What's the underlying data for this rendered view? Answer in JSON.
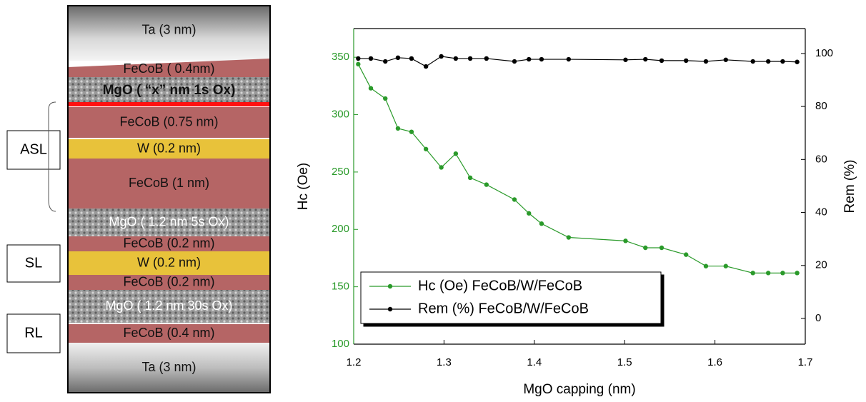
{
  "diagram": {
    "layers": [
      {
        "label": "Ta (3 nm)",
        "kind": "ta"
      },
      {
        "label": "FeCoB ( 0.4nm)",
        "kind": "fecob"
      },
      {
        "label": "MgO ( “x” nm 1s Ox)",
        "kind": "mgo"
      },
      {
        "label": "FeCoB (0.75 nm)",
        "kind": "fecob"
      },
      {
        "label": "W (0.2 nm)",
        "kind": "w"
      },
      {
        "label": "FeCoB (1 nm)",
        "kind": "fecob"
      },
      {
        "label": "MgO ( 1.2 nm 5s Ox)",
        "kind": "mgo"
      },
      {
        "label": "FeCoB (0.2 nm)",
        "kind": "fecob"
      },
      {
        "label": "W (0.2 nm)",
        "kind": "w"
      },
      {
        "label": "FeCoB (0.2 nm)",
        "kind": "fecob"
      },
      {
        "label": "MgO ( 1.2 nm 30s Ox)",
        "kind": "mgo"
      },
      {
        "label": "FeCoB (0.4 nm)",
        "kind": "fecob"
      },
      {
        "label": "Ta (3 nm)",
        "kind": "ta"
      }
    ],
    "groups": [
      "ASL",
      "SL",
      "RL"
    ]
  },
  "chart_data": {
    "type": "line",
    "x_label": "MgO capping (nm)",
    "y_label": "Hc (Oe)",
    "y2_label": "Rem (%)",
    "x": [
      1.205,
      1.219,
      1.235,
      1.249,
      1.264,
      1.28,
      1.297,
      1.313,
      1.329,
      1.347,
      1.378,
      1.394,
      1.408,
      1.438,
      1.501,
      1.523,
      1.541,
      1.568,
      1.59,
      1.612,
      1.642,
      1.659,
      1.675,
      1.691
    ],
    "series": [
      {
        "name": "Hc (Oe) FeCoB/W/FeCoB",
        "color": "#2a9a2a",
        "axis": "y",
        "values": [
          344,
          323,
          314,
          288,
          285,
          270,
          254,
          266,
          245,
          239,
          226,
          214,
          205,
          193,
          190,
          184,
          184,
          178,
          168,
          168,
          162,
          162,
          162,
          162
        ]
      },
      {
        "name": "Rem (%) FeCoB/W/FeCoB",
        "color": "#000000",
        "axis": "y2",
        "values": [
          98.1,
          98.1,
          97.0,
          98.4,
          98.1,
          95.1,
          98.9,
          98.1,
          98.1,
          98.1,
          97.0,
          97.8,
          97.8,
          97.8,
          97.6,
          97.8,
          97.3,
          97.3,
          97.0,
          97.6,
          97.0,
          97.0,
          97.0,
          96.8
        ]
      }
    ],
    "xlim": [
      1.2,
      1.7
    ],
    "xticks": [
      1.2,
      1.3,
      1.4,
      1.5,
      1.6,
      1.7
    ],
    "ylim": [
      100,
      375
    ],
    "yticks": [
      100,
      150,
      200,
      250,
      300,
      350
    ],
    "y2lim": [
      -9.7,
      109.4
    ],
    "y2ticks": [
      0,
      20,
      40,
      60,
      80,
      100
    ],
    "y_tick_color": "#2a9a2a",
    "legend": "lower left"
  }
}
